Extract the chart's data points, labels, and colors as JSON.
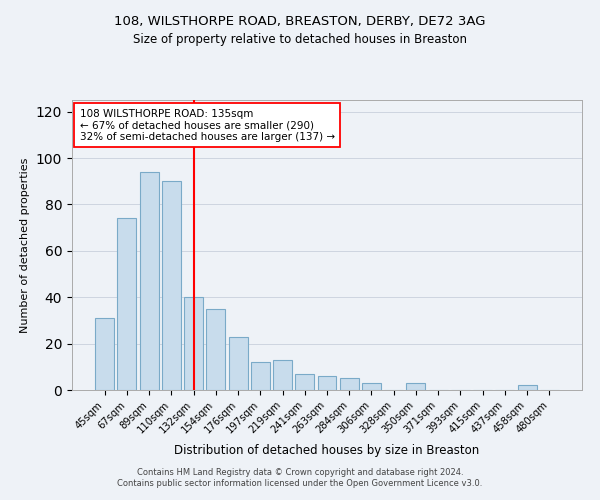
{
  "title": "108, WILSTHORPE ROAD, BREASTON, DERBY, DE72 3AG",
  "subtitle": "Size of property relative to detached houses in Breaston",
  "xlabel": "Distribution of detached houses by size in Breaston",
  "ylabel": "Number of detached properties",
  "bar_color": "#c8dcec",
  "bar_edge_color": "#7aaac8",
  "redline_index": 4,
  "annotation_title": "108 WILSTHORPE ROAD: 135sqm",
  "annotation_line1": "← 67% of detached houses are smaller (290)",
  "annotation_line2": "32% of semi-detached houses are larger (137) →",
  "categories": [
    "45sqm",
    "67sqm",
    "89sqm",
    "110sqm",
    "132sqm",
    "154sqm",
    "176sqm",
    "197sqm",
    "219sqm",
    "241sqm",
    "263sqm",
    "284sqm",
    "306sqm",
    "328sqm",
    "350sqm",
    "371sqm",
    "393sqm",
    "415sqm",
    "437sqm",
    "458sqm",
    "480sqm"
  ],
  "values": [
    31,
    74,
    94,
    90,
    40,
    35,
    23,
    12,
    13,
    7,
    6,
    5,
    3,
    0,
    3,
    0,
    0,
    0,
    0,
    2,
    0
  ],
  "ylim": [
    0,
    125
  ],
  "yticks": [
    0,
    20,
    40,
    60,
    80,
    100,
    120
  ],
  "footer_line1": "Contains HM Land Registry data © Crown copyright and database right 2024.",
  "footer_line2": "Contains public sector information licensed under the Open Government Licence v3.0.",
  "background_color": "#eef2f7",
  "plot_bg_color": "#eef2f7"
}
